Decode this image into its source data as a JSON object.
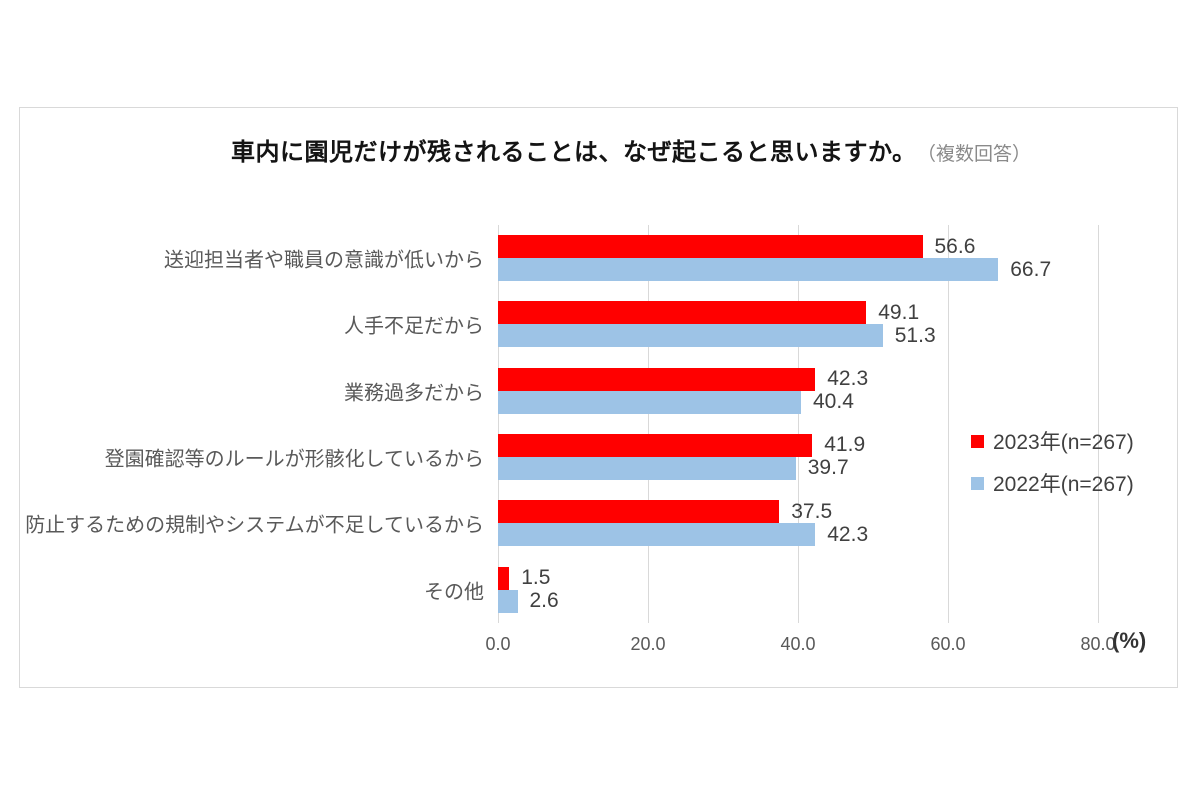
{
  "chart": {
    "title": "車内に園児だけが残されることは、なぜ起こると思いますか。",
    "subtitle": "（複数回答）",
    "unit_label": "(%)"
  },
  "chart_data": {
    "type": "bar",
    "orientation": "horizontal",
    "title": "車内に園児だけが残されることは、なぜ起こると思いますか。（複数回答）",
    "categories": [
      "送迎担当者や職員の意識が低いから",
      "人手不足だから",
      "業務過多だから",
      "登園確認等のルールが形骸化しているから",
      "防止するための規制やシステムが不足しているから",
      "その他"
    ],
    "series": [
      {
        "name": "2023年(n=267)",
        "color": "#ff0000",
        "values": [
          56.6,
          49.1,
          42.3,
          41.9,
          37.5,
          1.5
        ]
      },
      {
        "name": "2022年(n=267)",
        "color": "#9dc3e6",
        "values": [
          66.7,
          51.3,
          40.4,
          39.7,
          42.3,
          2.6
        ]
      }
    ],
    "xlabel": "(%)",
    "ylabel": "",
    "xlim": [
      0,
      80
    ],
    "xticks": [
      0.0,
      20.0,
      40.0,
      60.0,
      80.0
    ],
    "value_label_format": "one-decimal",
    "grid": true,
    "legend_position": "right-middle",
    "colors": {
      "grid_line": "#d9d9d9",
      "card_border": "#d9d9d9",
      "category_label": "#595959",
      "tick_label": "#595959",
      "value_label": "#404040",
      "title_text": "#141414",
      "subtitle_text": "#8a8a8a"
    }
  }
}
